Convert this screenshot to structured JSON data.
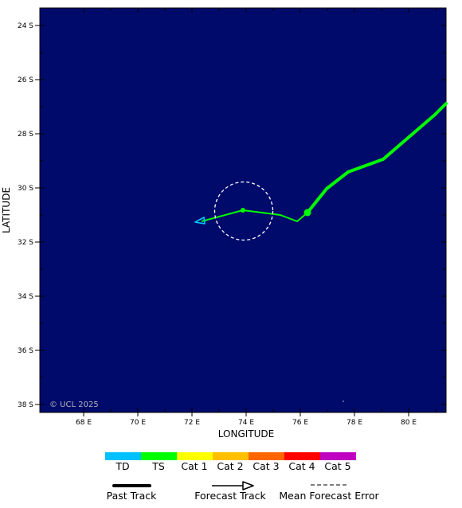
{
  "map": {
    "background_color": "#000a6b",
    "lat_labels": [
      "24 S",
      "26 S",
      "28 S",
      "30 S",
      "32 S",
      "34 S",
      "36 S",
      "38 S"
    ],
    "lon_labels": [
      "68 E",
      "70 E",
      "72 E",
      "74 E",
      "76 E",
      "78 E",
      "80 E"
    ],
    "xlabel": "LONGITUDE",
    "ylabel": "LATITUDE",
    "copyright": "© UCL 2025",
    "past_track_color": "#00ff00",
    "forecast_track_color": "#00ff00",
    "arrow_color": "#00c8ff"
  },
  "legend": {
    "categories": [
      {
        "label": "TD",
        "color": "#00c0ff"
      },
      {
        "label": "TS",
        "color": "#00ff00"
      },
      {
        "label": "Cat 1",
        "color": "#ffff00"
      },
      {
        "label": "Cat 2",
        "color": "#ffc000"
      },
      {
        "label": "Cat 3",
        "color": "#ff6600"
      },
      {
        "label": "Cat 4",
        "color": "#ff0000"
      },
      {
        "label": "Cat 5",
        "color": "#c000c0"
      }
    ],
    "past_track": "Past Track",
    "forecast_track": "Forecast Track",
    "mean_error": "Mean Forecast Error"
  }
}
